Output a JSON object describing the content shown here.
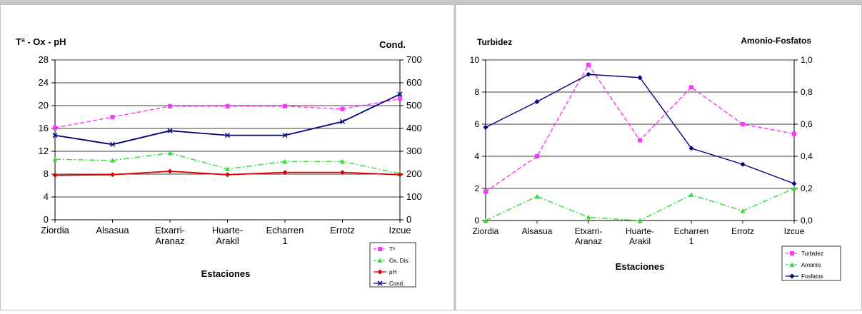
{
  "chart_data": [
    {
      "type": "line",
      "title_left": "Tª - Ox - pH",
      "title_right": "Cond.",
      "xlabel": "Estaciones",
      "categories": [
        "Ziordia",
        "Alsasua",
        "Etxarri-Aranaz",
        "Huarte-Arakil",
        "Echarren 1",
        "Errotz",
        "Izcue"
      ],
      "category_lines": [
        [
          "Ziordia"
        ],
        [
          "Alsasua"
        ],
        [
          "Etxarri-",
          "Aranaz"
        ],
        [
          "Huarte-",
          "Arakil"
        ],
        [
          "Echarren",
          "1"
        ],
        [
          "Errotz"
        ],
        [
          "Izcue"
        ]
      ],
      "y_left": {
        "min": 0,
        "max": 28,
        "ticks": [
          "0",
          "4",
          "8",
          "12",
          "16",
          "20",
          "24",
          "28"
        ]
      },
      "y_right": {
        "min": 0,
        "max": 700,
        "ticks": [
          "0",
          "100",
          "200",
          "300",
          "400",
          "500",
          "600",
          "700"
        ]
      },
      "grid": true,
      "legend_position": "bottom-right",
      "series": [
        {
          "name": "Tª",
          "axis": "left",
          "color": "#ff33ff",
          "dash": "6,3",
          "marker": "square",
          "values": [
            16.1,
            18.0,
            19.9,
            19.9,
            19.9,
            19.4,
            21.2
          ]
        },
        {
          "name": "Ox. Dis.",
          "axis": "left",
          "color": "#33dd33",
          "dash": "8,3,2,3",
          "marker": "triangle",
          "values": [
            10.6,
            10.4,
            11.7,
            8.9,
            10.2,
            10.2,
            8.1
          ]
        },
        {
          "name": "pH",
          "axis": "left",
          "color": "#dd0000",
          "dash": "",
          "marker": "diamond",
          "values": [
            7.8,
            7.9,
            8.5,
            7.9,
            8.3,
            8.3,
            7.9
          ]
        },
        {
          "name": "Cond.",
          "axis": "right",
          "color": "#000080",
          "dash": "",
          "marker": "cross",
          "values": [
            370,
            330,
            390,
            370,
            370,
            430,
            550
          ]
        }
      ]
    },
    {
      "type": "line",
      "title_left": "Turbidez",
      "title_right": "Amonio-Fosfatos",
      "xlabel": "Estaciones",
      "categories": [
        "Ziordia",
        "Alsasua",
        "Etxarri-Aranaz",
        "Huarte-Arakil",
        "Echarren 1",
        "Errotz",
        "Izcue"
      ],
      "category_lines": [
        [
          "Ziordia"
        ],
        [
          "Alsasua"
        ],
        [
          "Etxarri-",
          "Aranaz"
        ],
        [
          "Huarte-",
          "Arakil"
        ],
        [
          "Echarren",
          "1"
        ],
        [
          "Errotz"
        ],
        [
          "Izcue"
        ]
      ],
      "y_left": {
        "min": 0,
        "max": 10,
        "ticks": [
          "0",
          "2",
          "4",
          "6",
          "8",
          "10"
        ]
      },
      "y_right": {
        "min": 0,
        "max": 1.0,
        "ticks": [
          "0,0",
          "0,2",
          "0,4",
          "0,6",
          "0,8",
          "1,0"
        ]
      },
      "grid": true,
      "legend_position": "bottom-right",
      "series": [
        {
          "name": "Turbidez",
          "axis": "left",
          "color": "#ff33ff",
          "dash": "6,3",
          "marker": "square",
          "values": [
            1.8,
            4.0,
            9.7,
            5.0,
            8.3,
            6.0,
            5.4
          ]
        },
        {
          "name": "Amonio",
          "axis": "right",
          "color": "#33dd33",
          "dash": "8,3,2,3",
          "marker": "triangle",
          "values": [
            0.0,
            0.15,
            0.02,
            0.0,
            0.16,
            0.06,
            0.2
          ]
        },
        {
          "name": "Fosfatos",
          "axis": "right",
          "color": "#000080",
          "dash": "",
          "marker": "diamond",
          "values": [
            0.58,
            0.74,
            0.91,
            0.89,
            0.45,
            0.35,
            0.23
          ]
        }
      ]
    }
  ]
}
